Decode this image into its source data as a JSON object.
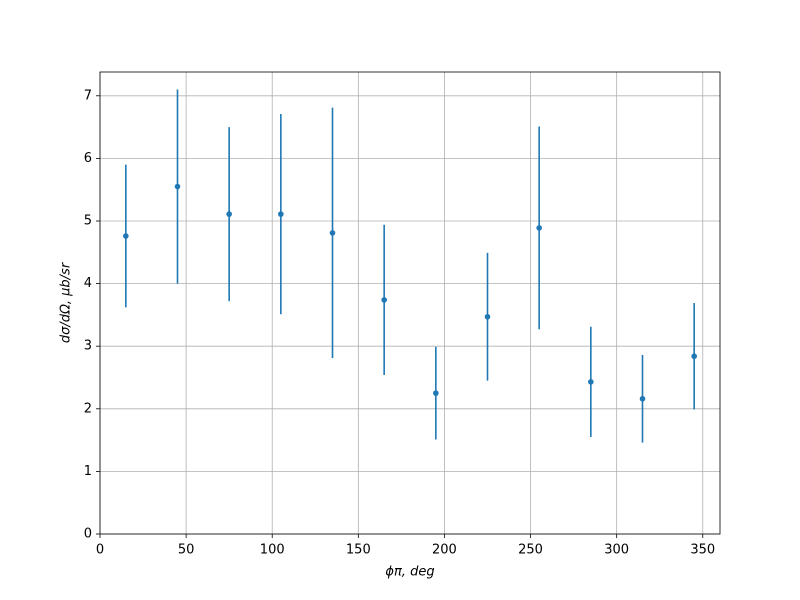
{
  "chart_data": {
    "type": "errorbar",
    "x_label": "ϕπ, deg",
    "y_label": "dσ/dΩ, μb/sr",
    "x": [
      15,
      45,
      75,
      105,
      135,
      165,
      195,
      225,
      255,
      285,
      315,
      345
    ],
    "values": [
      4.76,
      5.55,
      5.11,
      5.11,
      4.81,
      3.74,
      2.25,
      3.47,
      4.89,
      2.43,
      2.16,
      2.84
    ],
    "errors": [
      1.14,
      1.55,
      1.39,
      1.6,
      2.0,
      1.2,
      0.74,
      1.02,
      1.62,
      0.88,
      0.7,
      0.85
    ],
    "color": "#1f77b4",
    "xlim": [
      0,
      360
    ],
    "xticks": [
      0,
      50,
      100,
      150,
      200,
      250,
      300,
      350
    ],
    "ylim": [
      0,
      7.38
    ],
    "yticks": [
      0,
      1,
      2,
      3,
      4,
      5,
      6,
      7
    ],
    "grid": true
  }
}
